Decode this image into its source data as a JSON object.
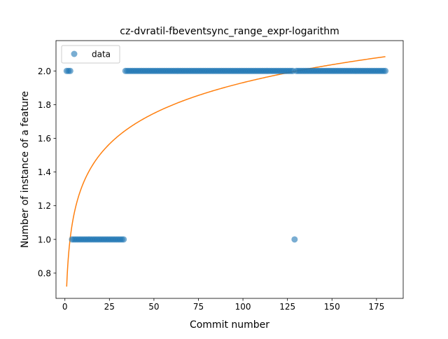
{
  "chart_data": {
    "type": "scatter",
    "title": "cz-dvratil-fbeventsync_range_expr-logarithm",
    "xlabel": "Commit number",
    "ylabel": "Number of instance of a feature",
    "xlim": [
      -5,
      190
    ],
    "ylim": [
      0.65,
      2.18
    ],
    "xticks": [
      0,
      25,
      50,
      75,
      100,
      125,
      150,
      175
    ],
    "yticks": [
      0.8,
      1.0,
      1.2,
      1.4,
      1.6,
      1.8,
      2.0
    ],
    "xtick_labels": [
      "0",
      "25",
      "50",
      "75",
      "100",
      "125",
      "150",
      "175"
    ],
    "ytick_labels": [
      "0.8",
      "1.0",
      "1.2",
      "1.4",
      "1.6",
      "1.8",
      "2.0"
    ],
    "grid": false,
    "legend": {
      "position": "upper-left",
      "entries": [
        "data"
      ]
    },
    "colors": {
      "data": "#1f77b4",
      "fit": "#ff7f0e"
    },
    "series": [
      {
        "name": "data",
        "kind": "scatter",
        "segments": [
          {
            "x_from": 1,
            "x_to": 3,
            "y": 2
          },
          {
            "x_from": 4,
            "x_to": 33,
            "y": 1
          },
          {
            "x_from": 34,
            "x_to": 128,
            "y": 2
          },
          {
            "x_from": 129,
            "x_to": 129,
            "y": 1
          },
          {
            "x_from": 130,
            "x_to": 180,
            "y": 2
          }
        ]
      },
      {
        "kind": "line",
        "model": "logarithm",
        "x_range": [
          1,
          180
        ],
        "y_at_x_min": 0.72,
        "y_at_x_max": 2.085
      }
    ]
  }
}
